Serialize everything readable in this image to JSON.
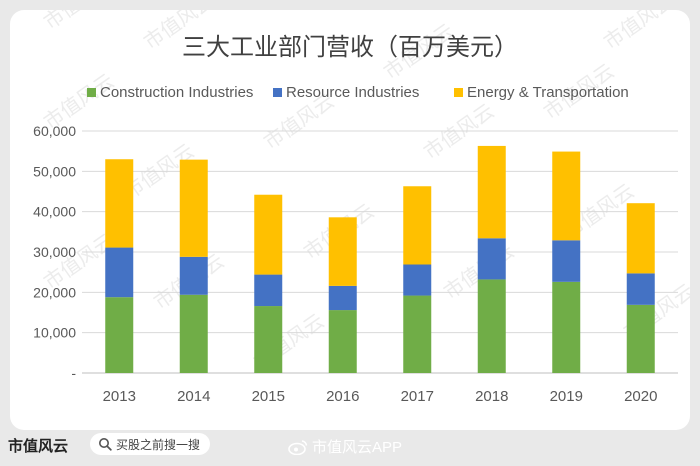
{
  "chart_data": {
    "type": "bar",
    "stacked": true,
    "title": "三大工业部门营收（百万美元）",
    "categories": [
      "2013",
      "2014",
      "2015",
      "2016",
      "2017",
      "2018",
      "2019",
      "2020"
    ],
    "series": [
      {
        "name": "Construction Industries",
        "color": "#70ad47",
        "values": [
          18800,
          19400,
          16600,
          15600,
          19200,
          23200,
          22600,
          16900
        ]
      },
      {
        "name": "Resource Industries",
        "color": "#4472c4",
        "values": [
          12300,
          9400,
          7800,
          6000,
          7700,
          10200,
          10300,
          7800
        ]
      },
      {
        "name": "Energy & Transportation",
        "color": "#ffc000",
        "values": [
          21900,
          24100,
          19800,
          17000,
          19400,
          22900,
          22000,
          17400
        ]
      }
    ],
    "yticks": [
      "-",
      "10,000",
      "20,000",
      "30,000",
      "40,000",
      "50,000",
      "60,000"
    ],
    "ylim": [
      0,
      60000
    ],
    "legend_position": "top",
    "grid": true
  },
  "watermark_text": "市值风云",
  "footer": {
    "logo_text": "市值风云",
    "search_placeholder": "买股之前搜一搜",
    "weibo_label": "市值风云APP"
  }
}
